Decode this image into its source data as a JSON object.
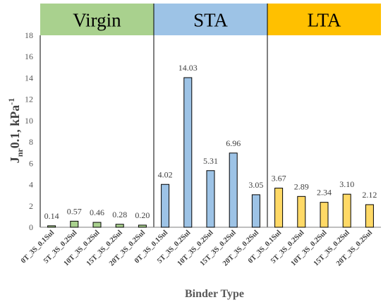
{
  "chart_data": {
    "type": "bar",
    "title": "",
    "xlabel": "Binder Type",
    "ylabel": {
      "main": "J",
      "sub": "nr",
      "rest": "0.1, kPa",
      "sup": "-1"
    },
    "ylim": [
      0,
      18
    ],
    "yticks": [
      "0",
      "2",
      "4",
      "6",
      "8",
      "10",
      "12",
      "14",
      "16",
      "18"
    ],
    "grid": false,
    "groups": [
      {
        "name": "Virgin",
        "band_color": "#a9d18e",
        "bar_color": "#a9d18e",
        "categories": [
          "0T_3S_0.1Sul",
          "5T_3S_0.2Sul",
          "10T_3S_0.2Sul",
          "15T_3S_0.2Sul",
          "20T_3S_0.2Sul"
        ],
        "values": [
          0.14,
          0.57,
          0.46,
          0.28,
          0.2
        ],
        "labels": [
          "0.14",
          "0.57",
          "0.46",
          "0.28",
          "0.20"
        ]
      },
      {
        "name": "STA",
        "band_color": "#9dc3e6",
        "bar_color": "#9dc3e6",
        "categories": [
          "0T_3S_0.1Sul",
          "5T_3S_0.2Sul",
          "10T_3S_0.2Sul",
          "15T_3S_0.2Sul",
          "20T_3S_0.2Sul"
        ],
        "values": [
          4.02,
          14.03,
          5.31,
          6.96,
          3.05
        ],
        "labels": [
          "4.02",
          "14.03",
          "5.31",
          "6.96",
          "3.05"
        ]
      },
      {
        "name": "LTA",
        "band_color": "#ffc000",
        "bar_color": "#ffd966",
        "categories": [
          "0T_3S_0.1Sul",
          "5T_3S_0.2Sul",
          "10T_3S_0.2Sul",
          "15T_3S_0.2Sul",
          "20T_3S_0.2Sul"
        ],
        "values": [
          3.67,
          2.89,
          2.34,
          3.1,
          2.12
        ],
        "labels": [
          "3.67",
          "2.89",
          "2.34",
          "3.10",
          "2.12"
        ]
      }
    ]
  }
}
